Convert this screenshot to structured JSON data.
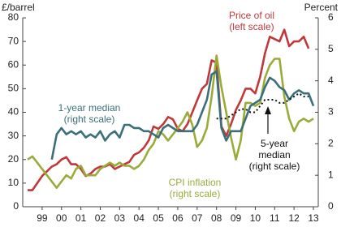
{
  "chart_data": {
    "type": "line",
    "y_label": "£/barrel",
    "y2_label": "Percent",
    "x": [
      1998.75,
      1999,
      1999.25,
      1999.5,
      1999.75,
      2000,
      2000.25,
      2000.5,
      2000.75,
      2001,
      2001.25,
      2001.5,
      2001.75,
      2002,
      2002.25,
      2002.5,
      2002.75,
      2003,
      2003.25,
      2003.5,
      2003.75,
      2004,
      2004.25,
      2004.5,
      2004.75,
      2005,
      2005.25,
      2005.5,
      2005.75,
      2006,
      2006.25,
      2006.5,
      2006.75,
      2007,
      2007.25,
      2007.5,
      2007.75,
      2008,
      2008.25,
      2008.5,
      2008.75,
      2009,
      2009.25,
      2009.5,
      2009.75,
      2010,
      2010.25,
      2010.5,
      2010.75,
      2011,
      2011.25,
      2011.5,
      2011.75,
      2012,
      2012.25,
      2012.5,
      2012.75,
      2013,
      2013.25,
      2013.5
    ],
    "series": [
      {
        "name": "Price of oil",
        "color": "#c0383a",
        "axis": "y",
        "values": [
          7,
          7,
          10,
          13,
          15,
          17,
          18,
          20,
          21,
          18,
          18,
          16,
          13,
          14,
          16,
          17,
          17,
          18,
          16,
          17,
          18,
          19,
          22,
          23,
          25,
          28,
          34,
          33,
          35,
          38,
          37,
          33,
          32,
          35,
          40,
          45,
          50,
          52,
          62,
          61,
          34,
          30,
          35,
          41,
          45,
          50,
          50,
          48,
          55,
          65,
          72,
          71,
          70,
          75,
          68,
          70,
          70,
          72,
          67,
          null
        ]
      },
      {
        "name": "CPI inflation",
        "color": "#9aab3a",
        "axis": "y2",
        "values": [
          1.5,
          1.6,
          1.4,
          1.2,
          1.0,
          0.8,
          0.6,
          0.8,
          1.0,
          0.9,
          1.2,
          1.3,
          1.0,
          1.0,
          1.0,
          1.2,
          1.3,
          1.4,
          1.3,
          1.4,
          1.3,
          1.3,
          1.2,
          1.3,
          1.5,
          1.8,
          2.0,
          2.4,
          2.3,
          2.1,
          2.3,
          2.5,
          2.7,
          3.0,
          2.6,
          1.9,
          2.1,
          2.5,
          3.5,
          4.8,
          3.8,
          3.0,
          2.2,
          1.5,
          2.1,
          3.3,
          3.3,
          3.2,
          3.3,
          4.1,
          4.5,
          4.7,
          4.7,
          3.5,
          2.8,
          2.4,
          2.7,
          2.8,
          2.7,
          2.8
        ]
      },
      {
        "name": "1-year median",
        "color": "#3b6f7a",
        "axis": "y2",
        "values": [
          null,
          null,
          null,
          null,
          null,
          1.5,
          2.3,
          2.5,
          2.3,
          2.4,
          2.3,
          2.4,
          2.2,
          2.3,
          2.2,
          2.4,
          2.1,
          2.3,
          2.4,
          2.2,
          2.6,
          2.6,
          2.5,
          2.5,
          2.4,
          2.4,
          2.3,
          2.2,
          2.5,
          2.6,
          2.5,
          2.4,
          2.4,
          2.4,
          2.4,
          2.6,
          3.0,
          3.4,
          4.2,
          4.3,
          2.5,
          2.1,
          2.4,
          2.4,
          2.4,
          2.8,
          3.2,
          3.3,
          3.4,
          3.8,
          4.1,
          4.0,
          3.8,
          3.7,
          3.4,
          3.6,
          3.7,
          3.6,
          3.6,
          3.2
        ]
      },
      {
        "name": "5-year median",
        "color": "#111111",
        "axis": "y2",
        "dash": "2,3",
        "values": [
          null,
          null,
          null,
          null,
          null,
          null,
          null,
          null,
          null,
          null,
          null,
          null,
          null,
          null,
          null,
          null,
          null,
          null,
          null,
          null,
          null,
          null,
          null,
          null,
          null,
          null,
          null,
          null,
          null,
          null,
          null,
          null,
          null,
          null,
          null,
          null,
          null,
          null,
          null,
          2.8,
          2.8,
          2.8,
          2.9,
          3.0,
          3.1,
          3.1,
          3.0,
          3.0,
          3.2,
          3.4,
          3.4,
          3.4,
          3.3,
          3.3,
          3.4,
          3.5,
          3.6,
          3.5,
          3.5,
          null
        ]
      }
    ],
    "annotations": [
      {
        "lines": [
          "Price of oil",
          "(left scale)"
        ],
        "color": "#c0383a"
      },
      {
        "lines": [
          "1-year median",
          "(right scale)"
        ],
        "color": "#3b6f7a"
      },
      {
        "lines": [
          "CPI inflation",
          "(right scale)"
        ],
        "color": "#9aab3a"
      },
      {
        "lines": [
          "5-year",
          "median",
          "(right scale)"
        ],
        "color": "#111111"
      }
    ],
    "xlim": [
      1998.5,
      2013.75
    ],
    "xticks": [
      {
        "value": 1999.5,
        "label": "99"
      },
      {
        "value": 2000.5,
        "label": "00"
      },
      {
        "value": 2001.5,
        "label": "01"
      },
      {
        "value": 2002.5,
        "label": "02"
      },
      {
        "value": 2003.5,
        "label": "03"
      },
      {
        "value": 2004.5,
        "label": "04"
      },
      {
        "value": 2005.5,
        "label": "05"
      },
      {
        "value": 2006.5,
        "label": "06"
      },
      {
        "value": 2007.5,
        "label": "07"
      },
      {
        "value": 2008.5,
        "label": "08"
      },
      {
        "value": 2009.5,
        "label": "09"
      },
      {
        "value": 2010.5,
        "label": "10"
      },
      {
        "value": 2011.5,
        "label": "11"
      },
      {
        "value": 2012.5,
        "label": "12"
      },
      {
        "value": 2013.5,
        "label": "13"
      }
    ],
    "ylim": [
      0,
      80
    ],
    "yticks": [
      0,
      10,
      20,
      30,
      40,
      50,
      60,
      70,
      80
    ],
    "y2lim": [
      0,
      6
    ],
    "y2ticks": [
      0,
      1,
      2,
      3,
      4,
      5,
      6
    ],
    "grid": false
  }
}
